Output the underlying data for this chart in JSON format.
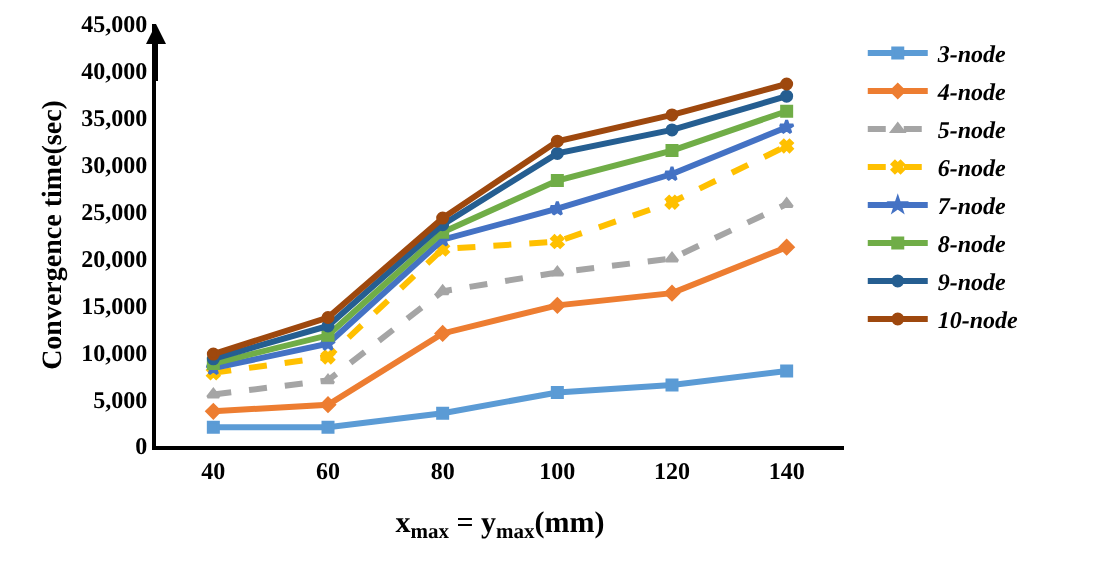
{
  "chart_data": {
    "type": "line",
    "xlabel": "x$_{max}$ = y$_{max}$(mm)",
    "ylabel": "Convergence time(sec)",
    "categories": [
      "40",
      "60",
      "80",
      "100",
      "120",
      "140"
    ],
    "ylim": [
      0,
      45000
    ],
    "yticks": [
      {
        "value": 0,
        "label": "0"
      },
      {
        "value": 5000,
        "label": "5,000"
      },
      {
        "value": 10000,
        "label": "10,000"
      },
      {
        "value": 15000,
        "label": "15,000"
      },
      {
        "value": 20000,
        "label": "20,000"
      },
      {
        "value": 25000,
        "label": "25,000"
      },
      {
        "value": 30000,
        "label": "30,000"
      },
      {
        "value": 35000,
        "label": "35,000"
      },
      {
        "value": 40000,
        "label": "40,000"
      },
      {
        "value": 45000,
        "label": "45,000"
      }
    ],
    "grid": false,
    "legend": "right",
    "series": [
      {
        "name": "3-node",
        "color": "#5b9bd5",
        "marker": "square",
        "line_style": "solid",
        "values": [
          2000,
          2000,
          3500,
          5700,
          6500,
          8000
        ]
      },
      {
        "name": "4-node",
        "color": "#ed7d31",
        "marker": "diamond",
        "line_style": "solid",
        "values": [
          3700,
          4400,
          12000,
          15000,
          16300,
          21200
        ]
      },
      {
        "name": "5-node",
        "color": "#a5a5a5",
        "marker": "triangle",
        "line_style": "dashed",
        "values": [
          5500,
          7000,
          16500,
          18500,
          20000,
          25800
        ]
      },
      {
        "name": "6-node",
        "color": "#ffc000",
        "marker": "cross",
        "line_style": "dashed",
        "values": [
          7800,
          9500,
          21000,
          21800,
          26000,
          32000
        ]
      },
      {
        "name": "7-node",
        "color": "#4472c4",
        "marker": "star",
        "line_style": "solid",
        "values": [
          8300,
          10900,
          22000,
          25300,
          29000,
          34000
        ]
      },
      {
        "name": "8-node",
        "color": "#70ad47",
        "marker": "square",
        "line_style": "solid",
        "values": [
          8800,
          11800,
          22800,
          28300,
          31500,
          35700
        ]
      },
      {
        "name": "9-node",
        "color": "#255e91",
        "marker": "circle",
        "line_style": "solid",
        "values": [
          9300,
          12800,
          23600,
          31200,
          33700,
          37300
        ]
      },
      {
        "name": "10-node",
        "color": "#9e480e",
        "marker": "circle",
        "line_style": "solid",
        "values": [
          9800,
          13700,
          24300,
          32500,
          35300,
          38600
        ]
      }
    ]
  }
}
